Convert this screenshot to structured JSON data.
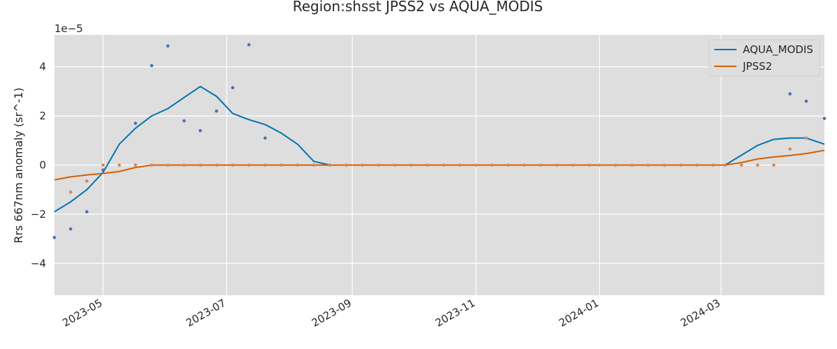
{
  "chart_data": {
    "type": "line",
    "title": "Region:shsst JPSS2 vs AQUA_MODIS",
    "xlabel": "",
    "ylabel": "Rrs 667nm anomaly (sr^-1)",
    "y_offset_label": "1e−5",
    "y_scale": 1e-05,
    "ylim": [
      -5.3e-05,
      5.3e-05
    ],
    "xlim": [
      "2023-04-07",
      "2024-04-21"
    ],
    "y_ticks": [
      -4e-05,
      -2e-05,
      0,
      2e-05,
      4e-05
    ],
    "y_tick_labels": [
      "−4",
      "−2",
      "0",
      "2",
      "4"
    ],
    "x_ticks": [
      "2023-05-01",
      "2023-07-01",
      "2023-09-01",
      "2023-11-01",
      "2024-01-01",
      "2024-03-01"
    ],
    "x_tick_labels": [
      "2023-05",
      "2023-07",
      "2023-09",
      "2023-11",
      "2024-01",
      "2024-03"
    ],
    "grid": true,
    "legend_placement": "top-right",
    "colors": {
      "background": "#dedede",
      "grid": "#ffffff",
      "AQUA_MODIS_line": "#0173b2",
      "AQUA_MODIS_points": "#4a72b0",
      "JPSS2_line": "#d55e00",
      "JPSS2_points": "#dd8452"
    },
    "series": [
      {
        "name": "AQUA_MODIS",
        "line": {
          "x": [
            "2023-04-07",
            "2023-04-15",
            "2023-04-23",
            "2023-05-01",
            "2023-05-09",
            "2023-05-17",
            "2023-05-25",
            "2023-06-02",
            "2023-06-10",
            "2023-06-18",
            "2023-06-26",
            "2023-07-04",
            "2023-07-12",
            "2023-07-20",
            "2023-07-28",
            "2023-08-05",
            "2023-08-13",
            "2023-08-21",
            "2023-08-29",
            "2024-03-03",
            "2024-03-11",
            "2024-03-19",
            "2024-03-27",
            "2024-04-04",
            "2024-04-12",
            "2024-04-21"
          ],
          "y": [
            -1.9e-05,
            -1.5e-05,
            -1e-05,
            -3e-06,
            8.5e-06,
            1.5e-05,
            2e-05,
            2.3e-05,
            2.75e-05,
            3.2e-05,
            2.8e-05,
            2.1e-05,
            1.85e-05,
            1.65e-05,
            1.3e-05,
            8.5e-06,
            1.5e-06,
            0,
            0,
            0,
            4e-06,
            8e-06,
            1.05e-05,
            1.1e-05,
            1.1e-05,
            8.5e-06
          ]
        },
        "points": {
          "x": [
            "2023-04-07",
            "2023-04-15",
            "2023-04-23",
            "2023-05-01",
            "2023-05-17",
            "2023-05-25",
            "2023-06-02",
            "2023-06-10",
            "2023-06-18",
            "2023-06-26",
            "2023-07-04",
            "2023-07-12",
            "2023-07-20",
            "2024-04-04",
            "2024-04-12",
            "2024-04-21"
          ],
          "y": [
            -2.95e-05,
            -2.6e-05,
            -1.9e-05,
            -2e-06,
            1.7e-05,
            4.05e-05,
            4.85e-05,
            1.8e-05,
            1.4e-05,
            2.2e-05,
            3.15e-05,
            4.9e-05,
            1.1e-05,
            2.9e-05,
            2.6e-05,
            1.9e-05
          ]
        }
      },
      {
        "name": "JPSS2",
        "line": {
          "x": [
            "2023-04-07",
            "2023-04-15",
            "2023-04-23",
            "2023-05-01",
            "2023-05-09",
            "2023-05-17",
            "2023-05-25",
            "2024-03-03",
            "2024-03-11",
            "2024-03-19",
            "2024-03-27",
            "2024-04-04",
            "2024-04-12",
            "2024-04-21"
          ],
          "y": [
            -6e-06,
            -4.8e-06,
            -4e-06,
            -3.4e-06,
            -2.6e-06,
            -1e-06,
            0,
            0,
            1e-06,
            2.5e-06,
            3.3e-06,
            3.9e-06,
            4.7e-06,
            6e-06
          ]
        },
        "points": {
          "x": [
            "2023-04-15",
            "2023-04-23",
            "2023-05-01",
            "2023-05-09",
            "2023-05-17",
            "2023-05-25",
            "2023-06-02",
            "2023-06-10",
            "2023-06-18",
            "2023-06-26",
            "2023-07-04",
            "2023-07-12",
            "2023-07-20",
            "2023-07-28",
            "2023-08-05",
            "2023-08-13",
            "2023-08-21",
            "2023-08-29",
            "2023-09-06",
            "2023-09-14",
            "2023-09-22",
            "2023-09-30",
            "2023-10-08",
            "2023-10-16",
            "2023-10-24",
            "2023-11-01",
            "2023-11-09",
            "2023-11-17",
            "2023-11-25",
            "2023-12-03",
            "2023-12-11",
            "2023-12-19",
            "2023-12-27",
            "2024-01-01",
            "2024-01-09",
            "2024-01-17",
            "2024-01-25",
            "2024-02-02",
            "2024-02-10",
            "2024-02-18",
            "2024-02-26",
            "2024-03-03",
            "2024-03-11",
            "2024-03-19",
            "2024-03-27",
            "2024-04-04",
            "2024-04-12"
          ],
          "y": [
            -1.1e-05,
            -6.5e-06,
            0,
            0,
            0,
            0,
            0,
            0,
            0,
            0,
            0,
            0,
            0,
            0,
            0,
            0,
            0,
            0,
            0,
            0,
            0,
            0,
            0,
            0,
            0,
            0,
            0,
            0,
            0,
            0,
            0,
            0,
            0,
            0,
            0,
            0,
            0,
            0,
            0,
            0,
            0,
            0,
            0,
            0,
            0,
            6.5e-06,
            1.1e-05
          ]
        }
      }
    ]
  }
}
